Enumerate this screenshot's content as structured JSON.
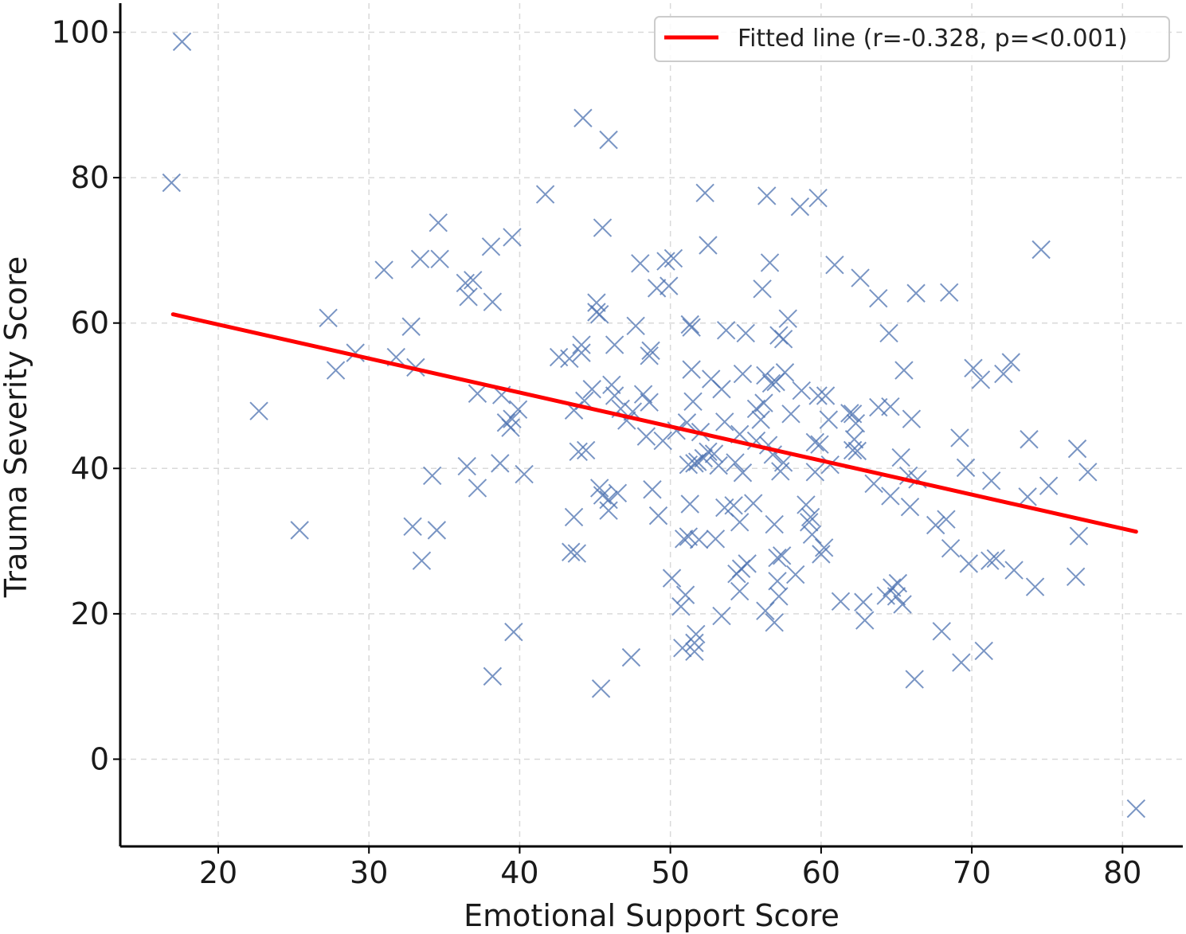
{
  "chart_data": {
    "type": "scatter",
    "xlabel": "Emotional Support Score",
    "ylabel": "Trauma Severity Score",
    "xlim": [
      13.5,
      84
    ],
    "ylim": [
      -12,
      104
    ],
    "xticks": [
      20,
      30,
      40,
      50,
      60,
      70,
      80
    ],
    "yticks": [
      0,
      20,
      40,
      60,
      80,
      100
    ],
    "grid": true,
    "legend_position": "top-right",
    "colors": {
      "points": "#4c72b0",
      "fit_line": "#ff0000",
      "grid": "#d9d9d9",
      "axis": "#000000"
    },
    "series": [
      {
        "kind": "scatter",
        "marker": "x",
        "points": [
          [
            17.6,
            98.7
          ],
          [
            16.9,
            79.3
          ],
          [
            22.7,
            47.9
          ],
          [
            25.4,
            31.5
          ],
          [
            27.3,
            60.7
          ],
          [
            27.8,
            53.5
          ],
          [
            29.1,
            55.9
          ],
          [
            31.0,
            67.3
          ],
          [
            31.8,
            55.3
          ],
          [
            32.8,
            59.5
          ],
          [
            32.9,
            32.0
          ],
          [
            33.1,
            53.9
          ],
          [
            33.4,
            68.8
          ],
          [
            33.5,
            27.3
          ],
          [
            34.2,
            39.0
          ],
          [
            34.5,
            31.5
          ],
          [
            34.6,
            73.8
          ],
          [
            34.7,
            68.8
          ],
          [
            36.4,
            65.5
          ],
          [
            36.5,
            40.3
          ],
          [
            36.6,
            63.6
          ],
          [
            36.9,
            65.9
          ],
          [
            37.2,
            37.3
          ],
          [
            37.2,
            50.3
          ],
          [
            38.1,
            70.5
          ],
          [
            38.2,
            62.9
          ],
          [
            38.2,
            11.4
          ],
          [
            38.7,
            40.7
          ],
          [
            38.8,
            50.1
          ],
          [
            39.1,
            46.3
          ],
          [
            39.4,
            45.6
          ],
          [
            39.5,
            46.8
          ],
          [
            39.5,
            71.8
          ],
          [
            39.6,
            17.5
          ],
          [
            39.9,
            48.1
          ],
          [
            40.3,
            39.2
          ],
          [
            41.7,
            77.7
          ],
          [
            42.6,
            55.3
          ],
          [
            43.3,
            55.1
          ],
          [
            43.4,
            28.5
          ],
          [
            43.6,
            33.3
          ],
          [
            43.6,
            48.0
          ],
          [
            43.8,
            28.3
          ],
          [
            43.9,
            42.3
          ],
          [
            44.1,
            55.9
          ],
          [
            44.1,
            57.0
          ],
          [
            44.2,
            88.2
          ],
          [
            44.3,
            49.3
          ],
          [
            44.4,
            42.5
          ],
          [
            44.8,
            50.9
          ],
          [
            45.1,
            61.5
          ],
          [
            45.1,
            62.8
          ],
          [
            45.3,
            61.2
          ],
          [
            45.3,
            37.3
          ],
          [
            45.4,
            9.7
          ],
          [
            45.5,
            73.1
          ],
          [
            45.5,
            36.3
          ],
          [
            45.9,
            35.7
          ],
          [
            45.9,
            34.2
          ],
          [
            45.9,
            85.2
          ],
          [
            46.1,
            51.5
          ],
          [
            46.3,
            50.0
          ],
          [
            46.3,
            57.0
          ],
          [
            46.5,
            36.6
          ],
          [
            46.7,
            48.2
          ],
          [
            47.1,
            46.6
          ],
          [
            47.4,
            14.0
          ],
          [
            47.5,
            47.8
          ],
          [
            47.7,
            59.6
          ],
          [
            48.0,
            68.2
          ],
          [
            48.2,
            50.2
          ],
          [
            48.4,
            44.4
          ],
          [
            48.6,
            49.1
          ],
          [
            48.6,
            55.5
          ],
          [
            48.7,
            56.2
          ],
          [
            48.8,
            37.1
          ],
          [
            49.1,
            64.8
          ],
          [
            49.2,
            33.5
          ],
          [
            49.5,
            43.8
          ],
          [
            49.7,
            68.5
          ],
          [
            49.9,
            65.1
          ],
          [
            50.1,
            24.9
          ],
          [
            50.2,
            68.9
          ],
          [
            50.4,
            45.2
          ],
          [
            50.7,
            21.0
          ],
          [
            50.8,
            15.3
          ],
          [
            50.9,
            30.3
          ],
          [
            51.0,
            22.6
          ],
          [
            51.1,
            46.3
          ],
          [
            51.2,
            30.6
          ],
          [
            51.2,
            40.5
          ],
          [
            51.3,
            59.8
          ],
          [
            51.3,
            35.1
          ],
          [
            51.4,
            59.4
          ],
          [
            51.4,
            53.6
          ],
          [
            51.5,
            49.2
          ],
          [
            51.6,
            40.7
          ],
          [
            51.6,
            16.0
          ],
          [
            51.6,
            14.8
          ],
          [
            51.7,
            17.2
          ],
          [
            51.8,
            40.9
          ],
          [
            51.9,
            30.2
          ],
          [
            52.0,
            45.0
          ],
          [
            52.2,
            41.4
          ],
          [
            52.3,
            77.9
          ],
          [
            52.5,
            70.7
          ],
          [
            52.5,
            42.3
          ],
          [
            52.7,
            52.3
          ],
          [
            52.9,
            42.0
          ],
          [
            53.0,
            30.3
          ],
          [
            53.2,
            40.4
          ],
          [
            53.4,
            50.9
          ],
          [
            53.4,
            19.7
          ],
          [
            53.6,
            46.4
          ],
          [
            53.6,
            34.6
          ],
          [
            53.7,
            59.0
          ],
          [
            54.2,
            34.9
          ],
          [
            54.3,
            40.8
          ],
          [
            54.4,
            25.5
          ],
          [
            54.6,
            23.1
          ],
          [
            54.6,
            44.7
          ],
          [
            54.6,
            32.6
          ],
          [
            54.7,
            26.2
          ],
          [
            54.8,
            39.4
          ],
          [
            54.8,
            53.0
          ],
          [
            55.0,
            58.6
          ],
          [
            55.1,
            26.9
          ],
          [
            55.5,
            35.2
          ],
          [
            55.7,
            43.8
          ],
          [
            55.7,
            48.2
          ],
          [
            56.0,
            46.7
          ],
          [
            56.1,
            64.7
          ],
          [
            56.2,
            49.0
          ],
          [
            56.3,
            20.4
          ],
          [
            56.3,
            52.8
          ],
          [
            56.4,
            77.5
          ],
          [
            56.5,
            43.2
          ],
          [
            56.6,
            68.3
          ],
          [
            56.7,
            51.7
          ],
          [
            56.8,
            41.9
          ],
          [
            56.9,
            18.8
          ],
          [
            56.9,
            32.3
          ],
          [
            57.0,
            51.9
          ],
          [
            57.1,
            27.7
          ],
          [
            57.1,
            24.5
          ],
          [
            57.2,
            58.3
          ],
          [
            57.2,
            22.4
          ],
          [
            57.3,
            39.6
          ],
          [
            57.4,
            28.0
          ],
          [
            57.5,
            40.8
          ],
          [
            57.5,
            57.8
          ],
          [
            57.6,
            53.2
          ],
          [
            57.8,
            60.6
          ],
          [
            58.0,
            47.5
          ],
          [
            58.3,
            25.4
          ],
          [
            58.6,
            76.0
          ],
          [
            58.7,
            50.7
          ],
          [
            59.0,
            35.0
          ],
          [
            59.2,
            32.6
          ],
          [
            59.3,
            33.3
          ],
          [
            59.4,
            30.9
          ],
          [
            59.6,
            39.5
          ],
          [
            59.6,
            43.6
          ],
          [
            59.8,
            77.2
          ],
          [
            59.8,
            50.0
          ],
          [
            59.9,
            43.3
          ],
          [
            60.0,
            28.2
          ],
          [
            60.2,
            29.1
          ],
          [
            60.3,
            50.0
          ],
          [
            60.5,
            46.7
          ],
          [
            60.6,
            40.5
          ],
          [
            60.9,
            68.0
          ],
          [
            61.3,
            21.7
          ],
          [
            61.9,
            47.6
          ],
          [
            62.1,
            42.5
          ],
          [
            62.1,
            47.5
          ],
          [
            62.2,
            44.0
          ],
          [
            62.3,
            46.2
          ],
          [
            62.4,
            42.4
          ],
          [
            62.6,
            66.2
          ],
          [
            62.8,
            21.6
          ],
          [
            62.9,
            19.1
          ],
          [
            63.5,
            37.9
          ],
          [
            63.8,
            63.4
          ],
          [
            63.8,
            48.4
          ],
          [
            64.3,
            22.5
          ],
          [
            64.5,
            58.6
          ],
          [
            64.6,
            36.2
          ],
          [
            64.6,
            48.5
          ],
          [
            64.7,
            23.6
          ],
          [
            65.0,
            22.4
          ],
          [
            65.1,
            24.2
          ],
          [
            65.3,
            41.5
          ],
          [
            65.4,
            21.3
          ],
          [
            65.5,
            53.5
          ],
          [
            65.8,
            39.0
          ],
          [
            65.9,
            34.7
          ],
          [
            66.0,
            46.8
          ],
          [
            66.2,
            11.0
          ],
          [
            66.3,
            64.1
          ],
          [
            66.4,
            38.5
          ],
          [
            67.6,
            32.2
          ],
          [
            68.0,
            17.6
          ],
          [
            68.3,
            33.0
          ],
          [
            68.5,
            64.2
          ],
          [
            68.6,
            29.0
          ],
          [
            69.2,
            44.2
          ],
          [
            69.3,
            13.3
          ],
          [
            69.6,
            40.1
          ],
          [
            69.8,
            26.9
          ],
          [
            70.1,
            53.8
          ],
          [
            70.6,
            52.2
          ],
          [
            70.8,
            14.9
          ],
          [
            71.2,
            27.3
          ],
          [
            71.3,
            38.3
          ],
          [
            71.6,
            27.6
          ],
          [
            72.1,
            53.0
          ],
          [
            72.6,
            54.6
          ],
          [
            72.8,
            26.0
          ],
          [
            73.7,
            36.1
          ],
          [
            73.8,
            44.0
          ],
          [
            74.2,
            23.7
          ],
          [
            74.6,
            70.1
          ],
          [
            75.1,
            37.6
          ],
          [
            76.9,
            25.1
          ],
          [
            77.0,
            42.7
          ],
          [
            77.1,
            30.7
          ],
          [
            77.7,
            39.5
          ],
          [
            80.9,
            -6.8
          ]
        ]
      },
      {
        "kind": "line",
        "name": "Fitted line (r=-0.328, p=<0.001)",
        "x": [
          17.0,
          80.9
        ],
        "y": [
          61.2,
          31.3
        ]
      }
    ]
  }
}
